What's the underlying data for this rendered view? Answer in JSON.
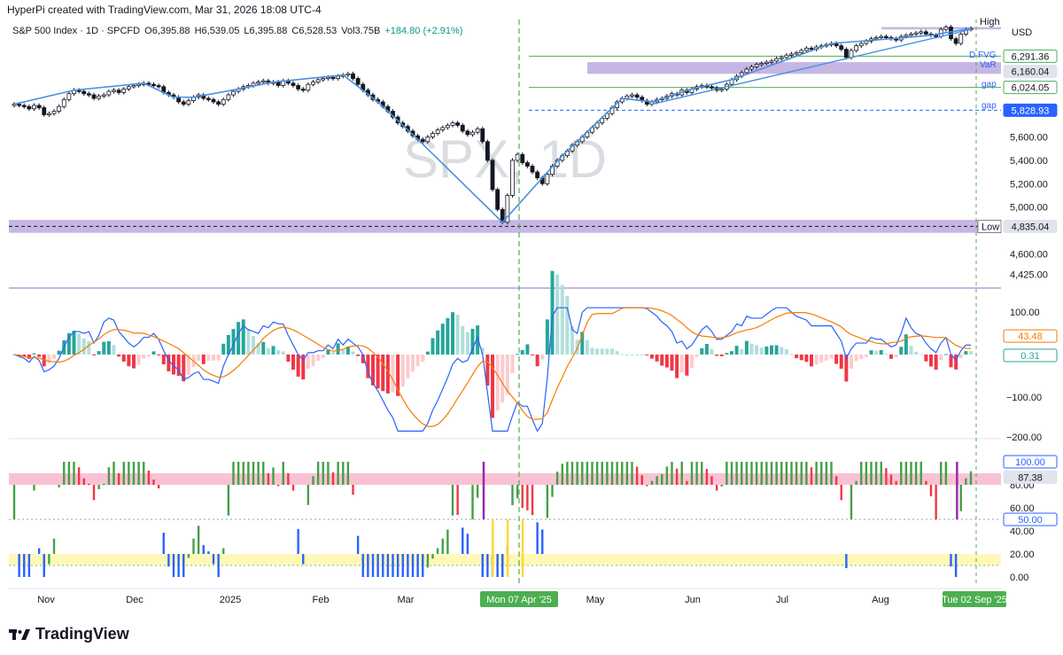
{
  "header": {
    "text": "HyperPi created with TradingView.com, Mar 31, 2026 18:08 UTC-4"
  },
  "legend": {
    "symbol": "S&P 500 Index · 1D · SPCFD",
    "open": "O6,395.88",
    "high": "H6,539.05",
    "low": "L6,395.88",
    "close": "C6,528.53",
    "volume": "Vol3.75B",
    "change": "+184.80 (+2.91%)"
  },
  "watermark": "SPX, 1D",
  "footer": {
    "brand": "TradingView"
  },
  "colors": {
    "up": "#089981",
    "down": "#f23645",
    "blue": "#2962ff",
    "orange": "#f57c00",
    "purple": "#9c27b0",
    "zone": "#b39ddb",
    "pink": "#f48fb1",
    "yellow": "#fff59d",
    "green_marker": "#4caf50"
  },
  "chart_data": [
    {
      "type": "candlestick",
      "title": "S&P 500 Index · 1D · SPCFD",
      "currency": "USD",
      "x_labels": [
        "Nov",
        "Dec",
        "2025",
        "Feb",
        "Mar",
        "Mon 07 Apr '25",
        "May",
        "Jun",
        "Jul",
        "Aug",
        "Tue 02 Sep '25"
      ],
      "y_ticks": [
        4425,
        4600,
        4835.04,
        5000,
        5200,
        5400,
        5600,
        5828.93,
        6024.05,
        6160.04,
        6291.36
      ],
      "y_tick_labels": [
        "4,425.00",
        "4,600.00",
        "4,835.04",
        "5,000.00",
        "5,200.00",
        "5,400.00",
        "5,600.00",
        "5,828.93",
        "6,024.05",
        "6,160.04",
        "6,291.36"
      ],
      "price_tags": [
        {
          "label": "6,291.36",
          "value": 6291.36,
          "style": "green-outline"
        },
        {
          "label": "6,160.04",
          "value": 6160.04,
          "style": "gray"
        },
        {
          "label": "6,024.05",
          "value": 6024.05,
          "style": "green-outline"
        },
        {
          "label": "5,828.93",
          "value": 5828.93,
          "style": "blue"
        },
        {
          "label": "4,835.04",
          "value": 4835.04,
          "style": "gray"
        }
      ],
      "annotations": [
        {
          "text": "High"
        },
        {
          "text": "Low"
        },
        {
          "text": "D FVG"
        },
        {
          "text": "VaR"
        },
        {
          "text": "gap"
        },
        {
          "text": "gap"
        }
      ],
      "zones": [
        {
          "from": 4780,
          "to": 4890
        },
        {
          "from": 6140,
          "to": 6240
        },
        {
          "from": 6520,
          "to": 6540
        }
      ],
      "series": [
        {
          "values": [
            5880,
            5870,
            5860,
            5840,
            5870,
            5850,
            5790,
            5800,
            5820,
            5860,
            5920,
            5970,
            6000,
            5990,
            5970,
            5960,
            5930,
            5950,
            5960,
            5990,
            6000,
            5980,
            6010,
            6030,
            6040,
            6050,
            6060,
            6050,
            6040,
            6030,
            5980,
            5960,
            5940,
            5900,
            5880,
            5910,
            5940,
            5960,
            5930,
            5920,
            5900,
            5880,
            5920,
            5960,
            5990,
            6010,
            6030,
            6040,
            6060,
            6070,
            6080,
            6060,
            6070,
            6040,
            6080,
            6060,
            6040,
            6010,
            6000,
            6050,
            6070,
            6090,
            6100,
            6110,
            6100,
            6120,
            6130,
            6140,
            6100,
            6050,
            6000,
            5960,
            5920,
            5900,
            5860,
            5820,
            5770,
            5720,
            5690,
            5650,
            5610,
            5580,
            5560,
            5600,
            5630,
            5660,
            5680,
            5700,
            5720,
            5700,
            5650,
            5620,
            5640,
            5670,
            5560,
            5400,
            5150,
            4980,
            4870,
            5100,
            5400,
            5450,
            5380,
            5350,
            5300,
            5250,
            5200,
            5280,
            5350,
            5400,
            5440,
            5480,
            5530,
            5560,
            5600,
            5640,
            5680,
            5720,
            5760,
            5800,
            5850,
            5900,
            5930,
            5950,
            5960,
            5940,
            5910,
            5880,
            5900,
            5920,
            5930,
            5950,
            5970,
            5960,
            6000,
            5980,
            6010,
            6030,
            6040,
            6030,
            6020,
            6000,
            6010,
            6050,
            6090,
            6120,
            6150,
            6180,
            6200,
            6220,
            6230,
            6240,
            6250,
            6270,
            6280,
            6300,
            6310,
            6320,
            6340,
            6360,
            6350,
            6370,
            6380,
            6390,
            6400,
            6380,
            6350,
            6280,
            6340,
            6380,
            6400,
            6420,
            6440,
            6450,
            6460,
            6450,
            6440,
            6430,
            6460,
            6470,
            6480,
            6490,
            6500,
            6480,
            6470,
            6460,
            6520,
            6540,
            6440,
            6400,
            6480,
            6520,
            6528.53
          ]
        }
      ]
    },
    {
      "type": "line",
      "title": "",
      "y_tick_labels": [
        "100.00",
        "−100.00",
        "−200.00"
      ],
      "y_ticks": [
        100,
        -100,
        -200
      ],
      "price_tags": [
        {
          "label": "43.48",
          "value": 43.48,
          "style": "orange"
        },
        {
          "label": "0.31",
          "value": 0.31,
          "style": "teal"
        }
      ]
    },
    {
      "type": "bar",
      "title": "",
      "y_tick_labels": [
        "100.00",
        "87.38",
        "80.00",
        "60.00",
        "50.00",
        "40.00",
        "20.00",
        "0.00"
      ],
      "y_ticks": [
        100,
        87.38,
        80,
        60,
        50,
        40,
        20,
        0
      ],
      "price_tags": [
        {
          "label": "100.00",
          "value": 100,
          "style": "blue-outline"
        },
        {
          "label": "87.38",
          "value": 87.38,
          "style": "gray"
        },
        {
          "label": "50.00",
          "value": 50,
          "style": "blue-outline"
        }
      ],
      "zones": [
        {
          "from": 80,
          "to": 90
        },
        {
          "from": 10,
          "to": 20
        }
      ]
    }
  ]
}
